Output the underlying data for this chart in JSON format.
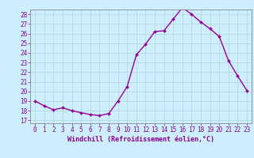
{
  "x": [
    0,
    1,
    2,
    3,
    4,
    5,
    6,
    7,
    8,
    9,
    10,
    11,
    12,
    13,
    14,
    15,
    16,
    17,
    18,
    19,
    20,
    21,
    22,
    23
  ],
  "y": [
    19,
    18.5,
    18.1,
    18.3,
    18.0,
    17.8,
    17.6,
    17.5,
    17.7,
    19.0,
    20.5,
    23.8,
    24.9,
    26.2,
    26.3,
    27.5,
    28.7,
    28.0,
    27.2,
    26.5,
    25.7,
    23.2,
    21.6,
    20.1
  ],
  "line_color": "#990099",
  "marker": "D",
  "marker_size": 2.0,
  "linewidth": 1.0,
  "bg_color": "#cceeff",
  "grid_color": "#aacccc",
  "xlabel": "Windchill (Refroidissement éolien,°C)",
  "xlabel_fontsize": 6,
  "xtick_labels": [
    "0",
    "1",
    "2",
    "3",
    "4",
    "5",
    "6",
    "7",
    "8",
    "9",
    "10",
    "11",
    "12",
    "13",
    "14",
    "15",
    "16",
    "17",
    "18",
    "19",
    "20",
    "21",
    "22",
    "23"
  ],
  "ytick_min": 17,
  "ytick_max": 28,
  "tick_fontsize": 5.5,
  "axis_color": "#880088",
  "spine_color": "#888888"
}
